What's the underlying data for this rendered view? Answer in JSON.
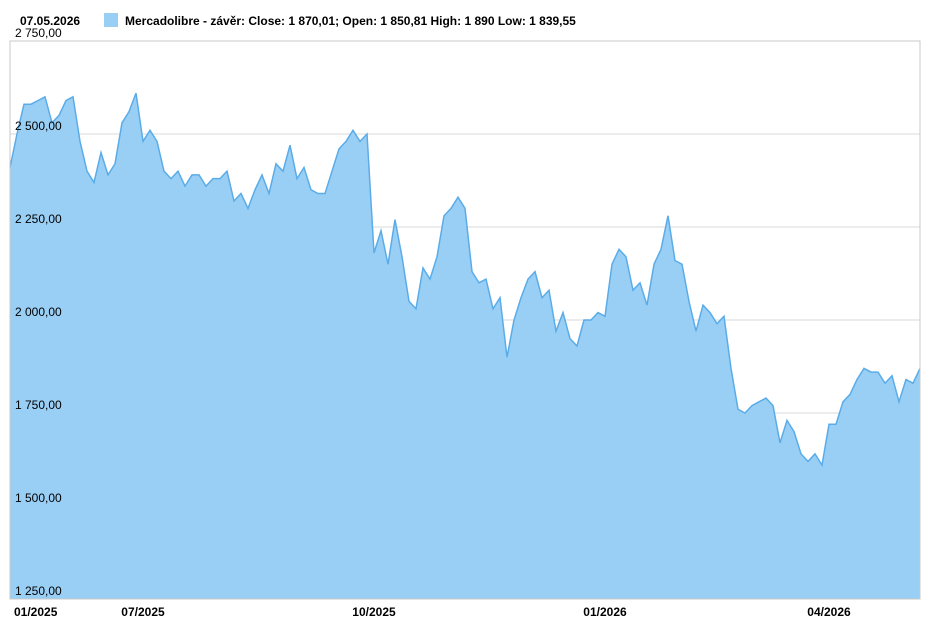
{
  "chart_data": {
    "type": "area",
    "date": "07.05.2026",
    "categories": [
      "01/2025",
      null,
      null,
      null,
      null,
      null,
      null,
      null,
      null,
      null,
      null,
      null,
      null,
      null,
      null,
      null,
      null,
      null,
      null,
      "07/2025",
      null,
      null,
      null,
      null,
      null,
      null,
      null,
      null,
      null,
      null,
      null,
      null,
      null,
      null,
      null,
      null,
      null,
      null,
      null,
      null,
      null,
      null,
      null,
      null,
      null,
      null,
      null,
      null,
      null,
      null,
      null,
      null,
      "10/2025",
      null,
      null,
      null,
      null,
      null,
      null,
      null,
      null,
      null,
      null,
      null,
      null,
      null,
      null,
      null,
      null,
      null,
      null,
      null,
      null,
      null,
      null,
      null,
      null,
      null,
      null,
      null,
      null,
      null,
      null,
      null,
      null,
      "01/2026",
      null,
      null,
      null,
      null,
      null,
      null,
      null,
      null,
      null,
      null,
      null,
      null,
      null,
      null,
      null,
      null,
      null,
      null,
      null,
      null,
      null,
      null,
      null,
      null,
      null,
      null,
      null,
      null,
      null,
      null,
      null,
      "04/2026",
      null,
      null,
      null,
      null,
      null,
      null,
      null,
      null,
      null,
      null,
      null,
      null,
      null
    ],
    "series": [
      {
        "name": "Mercadolibre - závěr: Close: 1 870,01; Open: 1 850,81 High: 1 890 Low: 1 839,55",
        "color": "#9acff5",
        "line_color": "#5aace8",
        "values": [
          2410,
          2500,
          2580,
          2580,
          2590,
          2600,
          2530,
          2550,
          2590,
          2600,
          2480,
          2400,
          2370,
          2450,
          2390,
          2420,
          2530,
          2560,
          2610,
          2480,
          2510,
          2480,
          2400,
          2380,
          2400,
          2360,
          2390,
          2390,
          2360,
          2380,
          2380,
          2400,
          2320,
          2340,
          2300,
          2350,
          2390,
          2340,
          2420,
          2400,
          2470,
          2380,
          2410,
          2350,
          2340,
          2340,
          2400,
          2460,
          2480,
          2510,
          2480,
          2500,
          2180,
          2240,
          2150,
          2270,
          2170,
          2050,
          2030,
          2140,
          2110,
          2170,
          2280,
          2300,
          2330,
          2300,
          2130,
          2100,
          2110,
          2030,
          2060,
          1900,
          2000,
          2060,
          2110,
          2130,
          2060,
          2080,
          1970,
          2020,
          1950,
          1930,
          2000,
          2000,
          2020,
          2010,
          2150,
          2190,
          2170,
          2080,
          2100,
          2040,
          2150,
          2190,
          2280,
          2160,
          2150,
          2050,
          1970,
          2040,
          2020,
          1990,
          2010,
          1870,
          1760,
          1750,
          1770,
          1780,
          1790,
          1770,
          1670,
          1730,
          1700,
          1640,
          1620,
          1640,
          1610,
          1720,
          1720,
          1780,
          1800,
          1840,
          1870,
          1860,
          1860,
          1830,
          1850,
          1780,
          1840,
          1830,
          1870
        ]
      }
    ],
    "ylim": [
      1250,
      2750
    ],
    "yticks": [
      {
        "value": 1250,
        "label": "1 250,00"
      },
      {
        "value": 1500,
        "label": "1 500,00"
      },
      {
        "value": 1750,
        "label": "1 750,00"
      },
      {
        "value": 2000,
        "label": "2 000,00"
      },
      {
        "value": 2250,
        "label": "2 250,00"
      },
      {
        "value": 2500,
        "label": "2 500,00"
      },
      {
        "value": 2750,
        "label": "2 750,00"
      }
    ],
    "grid": true
  }
}
